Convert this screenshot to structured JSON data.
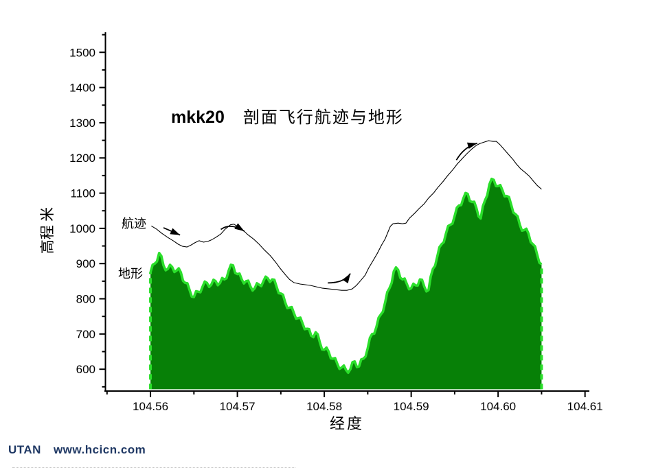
{
  "page": {
    "background": "#ffffff"
  },
  "footer": {
    "brand": "UTAN",
    "site": "www.hcicn.com",
    "color": "#1f3864"
  },
  "chart_data": {
    "type": "area",
    "title_code": "mkk20",
    "title_text": "剖面飞行航迹与地形",
    "xlabel": "经度",
    "ylabel": "高程 米",
    "xlim": [
      104.5547,
      104.6105
    ],
    "ylim": [
      538,
      1557
    ],
    "grid": false,
    "legend_position": "none",
    "x_ticks_major": [
      104.56,
      104.57,
      104.58,
      104.59,
      104.6,
      104.61
    ],
    "x_tick_labels": [
      "104.56",
      "104.57",
      "104.58",
      "104.59",
      "104.60",
      "104.61"
    ],
    "x_ticks_minor": [
      104.555,
      104.565,
      104.575,
      104.585,
      104.595,
      104.605
    ],
    "y_ticks_major": [
      600,
      700,
      800,
      900,
      1000,
      1100,
      1200,
      1300,
      1400,
      1500
    ],
    "y_tick_labels": [
      "600",
      "700",
      "800",
      "900",
      "1000",
      "1100",
      "1200",
      "1300",
      "1400",
      "1500"
    ],
    "y_ticks_minor": [
      550,
      650,
      750,
      850,
      950,
      1050,
      1150,
      1250,
      1350,
      1450,
      1550
    ],
    "terrain": {
      "name": "地形",
      "fill": "#078007",
      "edge": "#2bdf2b",
      "base_elevation": 543,
      "jaggedness": 9,
      "points": [
        [
          104.56,
          875
        ],
        [
          104.5605,
          900
        ],
        [
          104.561,
          930
        ],
        [
          104.5615,
          895
        ],
        [
          104.562,
          885
        ],
        [
          104.5625,
          890
        ],
        [
          104.563,
          880
        ],
        [
          104.5635,
          875
        ],
        [
          104.564,
          845
        ],
        [
          104.5645,
          825
        ],
        [
          104.565,
          805
        ],
        [
          104.5655,
          820
        ],
        [
          104.566,
          835
        ],
        [
          104.5665,
          845
        ],
        [
          104.567,
          840
        ],
        [
          104.5675,
          850
        ],
        [
          104.568,
          845
        ],
        [
          104.5685,
          855
        ],
        [
          104.569,
          880
        ],
        [
          104.5695,
          895
        ],
        [
          104.57,
          870
        ],
        [
          104.5705,
          855
        ],
        [
          104.571,
          850
        ],
        [
          104.5715,
          835
        ],
        [
          104.572,
          830
        ],
        [
          104.5725,
          840
        ],
        [
          104.573,
          850
        ],
        [
          104.5735,
          858
        ],
        [
          104.574,
          855
        ],
        [
          104.5745,
          835
        ],
        [
          104.575,
          815
        ],
        [
          104.5755,
          790
        ],
        [
          104.576,
          775
        ],
        [
          104.5765,
          760
        ],
        [
          104.577,
          745
        ],
        [
          104.5775,
          730
        ],
        [
          104.578,
          715
        ],
        [
          104.5785,
          695
        ],
        [
          104.579,
          705
        ],
        [
          104.5795,
          675
        ],
        [
          104.58,
          655
        ],
        [
          104.5805,
          650
        ],
        [
          104.581,
          630
        ],
        [
          104.5815,
          615
        ],
        [
          104.582,
          605
        ],
        [
          104.5825,
          598
        ],
        [
          104.583,
          600
        ],
        [
          104.5835,
          622
        ],
        [
          104.584,
          608
        ],
        [
          104.5845,
          630
        ],
        [
          104.585,
          660
        ],
        [
          104.5855,
          700
        ],
        [
          104.586,
          720
        ],
        [
          104.5865,
          755
        ],
        [
          104.587,
          790
        ],
        [
          104.5875,
          830
        ],
        [
          104.588,
          878
        ],
        [
          104.5885,
          882
        ],
        [
          104.589,
          855
        ],
        [
          104.5895,
          842
        ],
        [
          104.59,
          830
        ],
        [
          104.5905,
          838
        ],
        [
          104.591,
          855
        ],
        [
          104.5915,
          835
        ],
        [
          104.592,
          825
        ],
        [
          104.5925,
          885
        ],
        [
          104.593,
          920
        ],
        [
          104.5935,
          955
        ],
        [
          104.594,
          985
        ],
        [
          104.5945,
          1010
        ],
        [
          104.595,
          1035
        ],
        [
          104.5955,
          1065
        ],
        [
          104.596,
          1085
        ],
        [
          104.5965,
          1098
        ],
        [
          104.597,
          1075
        ],
        [
          104.5975,
          1058
        ],
        [
          104.598,
          1028
        ],
        [
          104.5985,
          1080
        ],
        [
          104.599,
          1125
        ],
        [
          104.5995,
          1138
        ],
        [
          104.6,
          1120
        ],
        [
          104.6005,
          1108
        ],
        [
          104.601,
          1092
        ],
        [
          104.6015,
          1068
        ],
        [
          104.602,
          1040
        ],
        [
          104.6025,
          1010
        ],
        [
          104.603,
          995
        ],
        [
          104.6035,
          985
        ],
        [
          104.604,
          955
        ],
        [
          104.6045,
          925
        ],
        [
          104.605,
          898
        ]
      ]
    },
    "trajectory": {
      "name": "航迹",
      "color": "#000000",
      "points": [
        [
          104.5601,
          1007
        ],
        [
          104.5607,
          998
        ],
        [
          104.5613,
          986
        ],
        [
          104.562,
          974
        ],
        [
          104.5626,
          965
        ],
        [
          104.5632,
          955
        ],
        [
          104.5637,
          949
        ],
        [
          104.5642,
          947
        ],
        [
          104.5647,
          953
        ],
        [
          104.5651,
          959
        ],
        [
          104.5656,
          965
        ],
        [
          104.5661,
          961
        ],
        [
          104.5666,
          963
        ],
        [
          104.567,
          967
        ],
        [
          104.5675,
          974
        ],
        [
          104.5681,
          984
        ],
        [
          104.5686,
          998
        ],
        [
          104.5692,
          1010
        ],
        [
          104.5696,
          1012
        ],
        [
          104.5701,
          1004
        ],
        [
          104.5707,
          994
        ],
        [
          104.5712,
          982
        ],
        [
          104.5719,
          969
        ],
        [
          104.5725,
          955
        ],
        [
          104.5731,
          939
        ],
        [
          104.5738,
          922
        ],
        [
          104.5744,
          904
        ],
        [
          104.5749,
          887
        ],
        [
          104.5755,
          869
        ],
        [
          104.576,
          855
        ],
        [
          104.5765,
          846
        ],
        [
          104.5772,
          842
        ],
        [
          104.5778,
          840
        ],
        [
          104.5784,
          838
        ],
        [
          104.5791,
          834
        ],
        [
          104.5798,
          830
        ],
        [
          104.5806,
          828
        ],
        [
          104.5813,
          826
        ],
        [
          104.582,
          824
        ],
        [
          104.5826,
          824
        ],
        [
          104.5832,
          828
        ],
        [
          104.5837,
          838
        ],
        [
          104.5842,
          852
        ],
        [
          104.5847,
          867
        ],
        [
          104.5851,
          887
        ],
        [
          104.5856,
          908
        ],
        [
          104.5861,
          929
        ],
        [
          104.5866,
          953
        ],
        [
          104.587,
          970
        ],
        [
          104.5873,
          988
        ],
        [
          104.5876,
          1006
        ],
        [
          104.5879,
          1013
        ],
        [
          104.5885,
          1015
        ],
        [
          104.589,
          1013
        ],
        [
          104.5894,
          1015
        ],
        [
          104.5898,
          1029
        ],
        [
          104.5904,
          1043
        ],
        [
          104.5909,
          1056
        ],
        [
          104.5915,
          1070
        ],
        [
          104.592,
          1086
        ],
        [
          104.5926,
          1101
        ],
        [
          104.5931,
          1117
        ],
        [
          104.5937,
          1134
        ],
        [
          104.5942,
          1150
        ],
        [
          104.5948,
          1167
        ],
        [
          104.5953,
          1183
        ],
        [
          104.5959,
          1199
        ],
        [
          104.5964,
          1212
        ],
        [
          104.597,
          1226
        ],
        [
          104.5975,
          1236
        ],
        [
          104.5979,
          1241
        ],
        [
          104.5984,
          1245
        ],
        [
          104.5989,
          1249
        ],
        [
          104.5994,
          1247
        ],
        [
          104.5998,
          1247
        ],
        [
          104.6002,
          1238
        ],
        [
          104.6007,
          1224
        ],
        [
          104.6012,
          1210
        ],
        [
          104.6017,
          1196
        ],
        [
          104.6021,
          1183
        ],
        [
          104.6026,
          1169
        ],
        [
          104.6031,
          1159
        ],
        [
          104.6036,
          1148
        ],
        [
          104.604,
          1136
        ],
        [
          104.6045,
          1122
        ],
        [
          104.605,
          1111
        ]
      ]
    },
    "arrows": [
      {
        "tail": [
          104.5615,
          1002
        ],
        "ctrl": [
          104.56245,
          991.5
        ],
        "tip": [
          104.5634,
          981
        ]
      },
      {
        "tail": [
          104.5681,
          997
        ],
        "ctrl": [
          104.5692,
          1017
        ],
        "tip": [
          104.5708,
          992
        ]
      },
      {
        "tail": [
          104.5804,
          845
        ],
        "ctrl": [
          104.5823,
          845
        ],
        "tip": [
          104.583,
          872
        ]
      },
      {
        "tail": [
          104.5952,
          1194
        ],
        "ctrl": [
          104.5961,
          1232
        ],
        "tip": [
          104.5976,
          1242
        ]
      }
    ]
  }
}
